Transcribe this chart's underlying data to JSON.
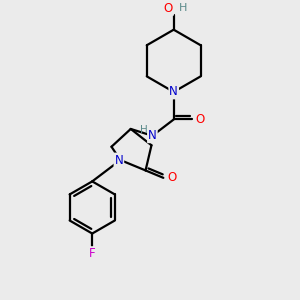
{
  "bg_color": "#ebebeb",
  "atom_colors": {
    "C": "#000000",
    "N": "#0000cc",
    "O": "#ff0000",
    "F": "#cc00cc",
    "H": "#5a8a8a"
  },
  "bond_color": "#000000",
  "bond_width": 1.6,
  "figsize": [
    3.0,
    3.0
  ],
  "dpi": 100
}
